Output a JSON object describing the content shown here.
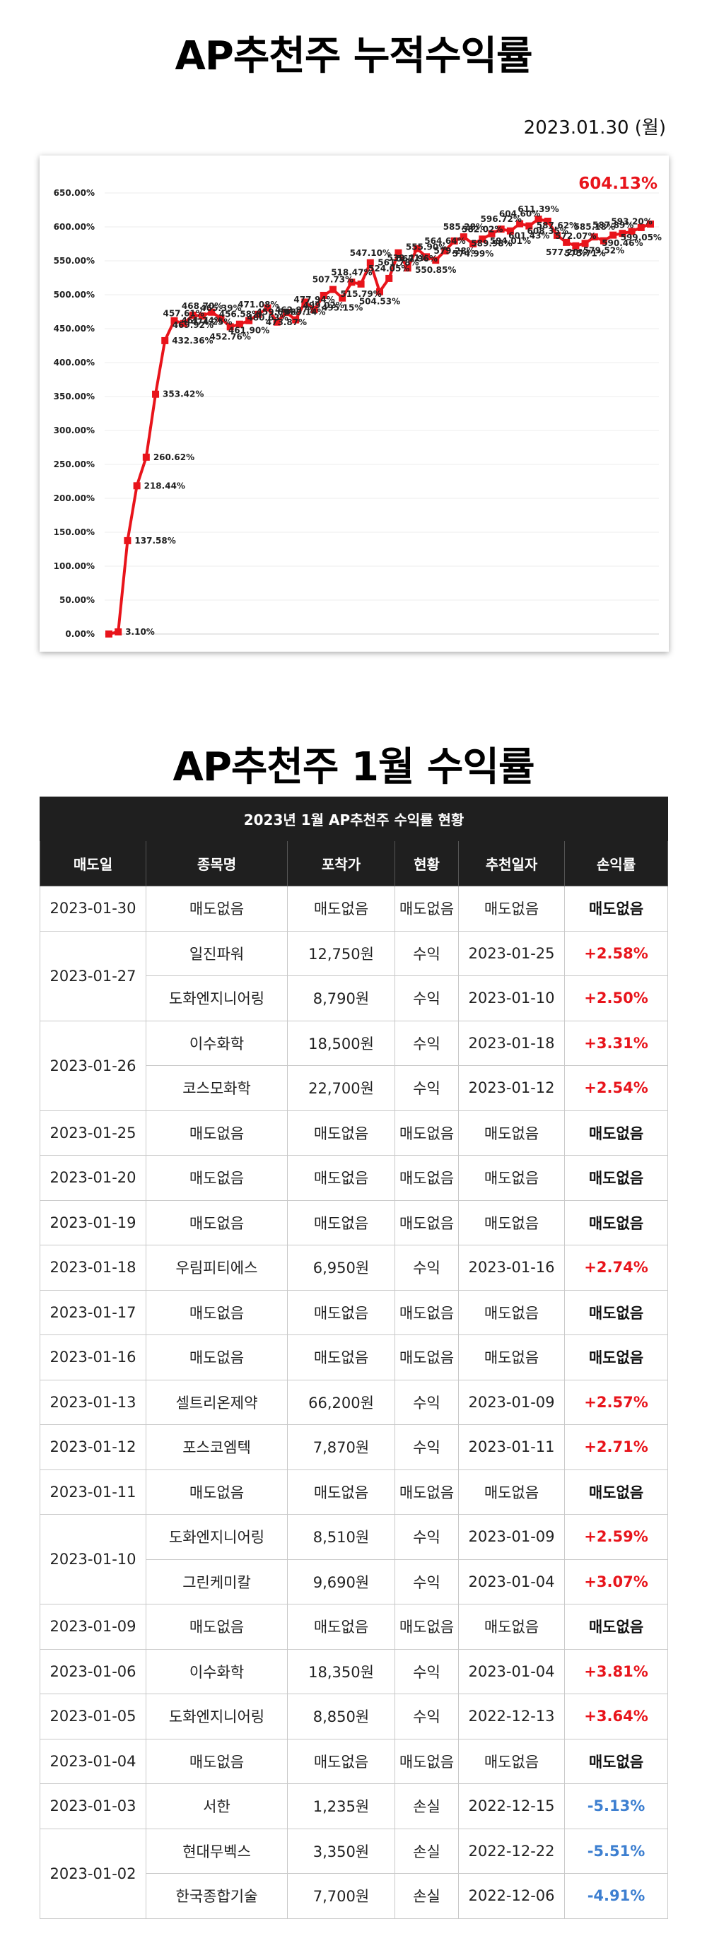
{
  "titles": {
    "cumulative": "AP추천주 누적수익률",
    "monthly": "AP추천주 1월 수익률"
  },
  "date_label": "2023.01.30 (월)",
  "colors": {
    "line": "#e8141b",
    "positive": "#e8141b",
    "negative": "#3d7fd0",
    "header_bg": "#1f1f1f"
  },
  "chart_data": {
    "type": "line",
    "highlight_label": "604.13%",
    "ylim": [
      0,
      650
    ],
    "y_ticks": [
      "0.00%",
      "50.00%",
      "100.00%",
      "150.00%",
      "200.00%",
      "250.00%",
      "300.00%",
      "350.00%",
      "400.00%",
      "450.00%",
      "500.00%",
      "550.00%",
      "600.00%",
      "650.00%"
    ],
    "grid": true,
    "series": [
      {
        "values": [
          0,
          3.1,
          137.58,
          218.44,
          260.62,
          353.42,
          432.36,
          461.74,
          457.61,
          469.92,
          468.7,
          474.25,
          465.39,
          452.76,
          456.58,
          461.9,
          471.08,
          480.63,
          459.69,
          473.87,
          462.97,
          489.14,
          477.94,
          499.02,
          507.73,
          495.15,
          518.47,
          515.79,
          547.1,
          504.53,
          524.05,
          561.78,
          539.41,
          567.96,
          555.9,
          550.85,
          564.64,
          579.28,
          585.28,
          574.99,
          582.02,
          589.98,
          596.72,
          594.01,
          604.6,
          601.43,
          611.39,
          608.35,
          587.62,
          577.2,
          572.07,
          575.71,
          585.18,
          579.52,
          587.89,
          590.46,
          593.2,
          599.05,
          604.13
        ],
        "data_labels": [
          "",
          "3.10%",
          "137.58%",
          "218.44%",
          "260.62%",
          "353.42%",
          "432.36%",
          "461.74%",
          "457.61%",
          "469.92%",
          "468.70%",
          "474.25%",
          "465.39%",
          "452.76%",
          "456.58%",
          "461.90%",
          "471.08%",
          "480.63%",
          "459.69%",
          "473.87%",
          "462.97%",
          "489.14%",
          "477.94%",
          "499.02%",
          "507.73%",
          "495.15%",
          "518.47%",
          "515.79%",
          "547.10%",
          "504.53%",
          "524.05%",
          "561.78%",
          "539.41%",
          "567.96%",
          "555.90%",
          "550.85%",
          "564.64%",
          "579.28%",
          "585.28%",
          "574.99%",
          "582.02%",
          "589.98%",
          "596.72%",
          "594.01%",
          "604.60%",
          "601.43%",
          "611.39%",
          "608.35%",
          "587.62%",
          "577.20%",
          "572.07%",
          "575.71%",
          "585.18%",
          "579.52%",
          "587.89%",
          "590.46%",
          "593.20%",
          "599.05%",
          ""
        ]
      }
    ]
  },
  "table": {
    "caption": "2023년 1월 AP추천주 수익률 현황",
    "columns": [
      "매도일",
      "종목명",
      "포착가",
      "현황",
      "추천일자",
      "손익률"
    ],
    "groups": [
      {
        "date": "2023-01-30",
        "rows": [
          {
            "name": "매도없음",
            "price": "매도없음",
            "status": "매도없음",
            "rec_date": "매도없음",
            "profit": "매도없음",
            "tone": "none"
          }
        ]
      },
      {
        "date": "2023-01-27",
        "rows": [
          {
            "name": "일진파워",
            "price": "12,750원",
            "status": "수익",
            "rec_date": "2023-01-25",
            "profit": "+2.58%",
            "tone": "pos"
          },
          {
            "name": "도화엔지니어링",
            "price": "8,790원",
            "status": "수익",
            "rec_date": "2023-01-10",
            "profit": "+2.50%",
            "tone": "pos"
          }
        ]
      },
      {
        "date": "2023-01-26",
        "rows": [
          {
            "name": "이수화학",
            "price": "18,500원",
            "status": "수익",
            "rec_date": "2023-01-18",
            "profit": "+3.31%",
            "tone": "pos"
          },
          {
            "name": "코스모화학",
            "price": "22,700원",
            "status": "수익",
            "rec_date": "2023-01-12",
            "profit": "+2.54%",
            "tone": "pos"
          }
        ]
      },
      {
        "date": "2023-01-25",
        "rows": [
          {
            "name": "매도없음",
            "price": "매도없음",
            "status": "매도없음",
            "rec_date": "매도없음",
            "profit": "매도없음",
            "tone": "none"
          }
        ]
      },
      {
        "date": "2023-01-20",
        "rows": [
          {
            "name": "매도없음",
            "price": "매도없음",
            "status": "매도없음",
            "rec_date": "매도없음",
            "profit": "매도없음",
            "tone": "none"
          }
        ]
      },
      {
        "date": "2023-01-19",
        "rows": [
          {
            "name": "매도없음",
            "price": "매도없음",
            "status": "매도없음",
            "rec_date": "매도없음",
            "profit": "매도없음",
            "tone": "none"
          }
        ]
      },
      {
        "date": "2023-01-18",
        "rows": [
          {
            "name": "우림피티에스",
            "price": "6,950원",
            "status": "수익",
            "rec_date": "2023-01-16",
            "profit": "+2.74%",
            "tone": "pos"
          }
        ]
      },
      {
        "date": "2023-01-17",
        "rows": [
          {
            "name": "매도없음",
            "price": "매도없음",
            "status": "매도없음",
            "rec_date": "매도없음",
            "profit": "매도없음",
            "tone": "none"
          }
        ]
      },
      {
        "date": "2023-01-16",
        "rows": [
          {
            "name": "매도없음",
            "price": "매도없음",
            "status": "매도없음",
            "rec_date": "매도없음",
            "profit": "매도없음",
            "tone": "none"
          }
        ]
      },
      {
        "date": "2023-01-13",
        "rows": [
          {
            "name": "셀트리온제약",
            "price": "66,200원",
            "status": "수익",
            "rec_date": "2023-01-09",
            "profit": "+2.57%",
            "tone": "pos"
          }
        ]
      },
      {
        "date": "2023-01-12",
        "rows": [
          {
            "name": "포스코엠텍",
            "price": "7,870원",
            "status": "수익",
            "rec_date": "2023-01-11",
            "profit": "+2.71%",
            "tone": "pos"
          }
        ]
      },
      {
        "date": "2023-01-11",
        "rows": [
          {
            "name": "매도없음",
            "price": "매도없음",
            "status": "매도없음",
            "rec_date": "매도없음",
            "profit": "매도없음",
            "tone": "none"
          }
        ]
      },
      {
        "date": "2023-01-10",
        "rows": [
          {
            "name": "도화엔지니어링",
            "price": "8,510원",
            "status": "수익",
            "rec_date": "2023-01-09",
            "profit": "+2.59%",
            "tone": "pos"
          },
          {
            "name": "그린케미칼",
            "price": "9,690원",
            "status": "수익",
            "rec_date": "2023-01-04",
            "profit": "+3.07%",
            "tone": "pos"
          }
        ]
      },
      {
        "date": "2023-01-09",
        "rows": [
          {
            "name": "매도없음",
            "price": "매도없음",
            "status": "매도없음",
            "rec_date": "매도없음",
            "profit": "매도없음",
            "tone": "none"
          }
        ]
      },
      {
        "date": "2023-01-06",
        "rows": [
          {
            "name": "이수화학",
            "price": "18,350원",
            "status": "수익",
            "rec_date": "2023-01-04",
            "profit": "+3.81%",
            "tone": "pos"
          }
        ]
      },
      {
        "date": "2023-01-05",
        "rows": [
          {
            "name": "도화엔지니어링",
            "price": "8,850원",
            "status": "수익",
            "rec_date": "2022-12-13",
            "profit": "+3.64%",
            "tone": "pos"
          }
        ]
      },
      {
        "date": "2023-01-04",
        "rows": [
          {
            "name": "매도없음",
            "price": "매도없음",
            "status": "매도없음",
            "rec_date": "매도없음",
            "profit": "매도없음",
            "tone": "none"
          }
        ]
      },
      {
        "date": "2023-01-03",
        "rows": [
          {
            "name": "서한",
            "price": "1,235원",
            "status": "손실",
            "rec_date": "2022-12-15",
            "profit": "-5.13%",
            "tone": "neg"
          }
        ]
      },
      {
        "date": "2023-01-02",
        "rows": [
          {
            "name": "현대무벡스",
            "price": "3,350원",
            "status": "손실",
            "rec_date": "2022-12-22",
            "profit": "-5.51%",
            "tone": "neg"
          },
          {
            "name": "한국종합기술",
            "price": "7,700원",
            "status": "손실",
            "rec_date": "2022-12-06",
            "profit": "-4.91%",
            "tone": "neg"
          }
        ]
      }
    ]
  }
}
